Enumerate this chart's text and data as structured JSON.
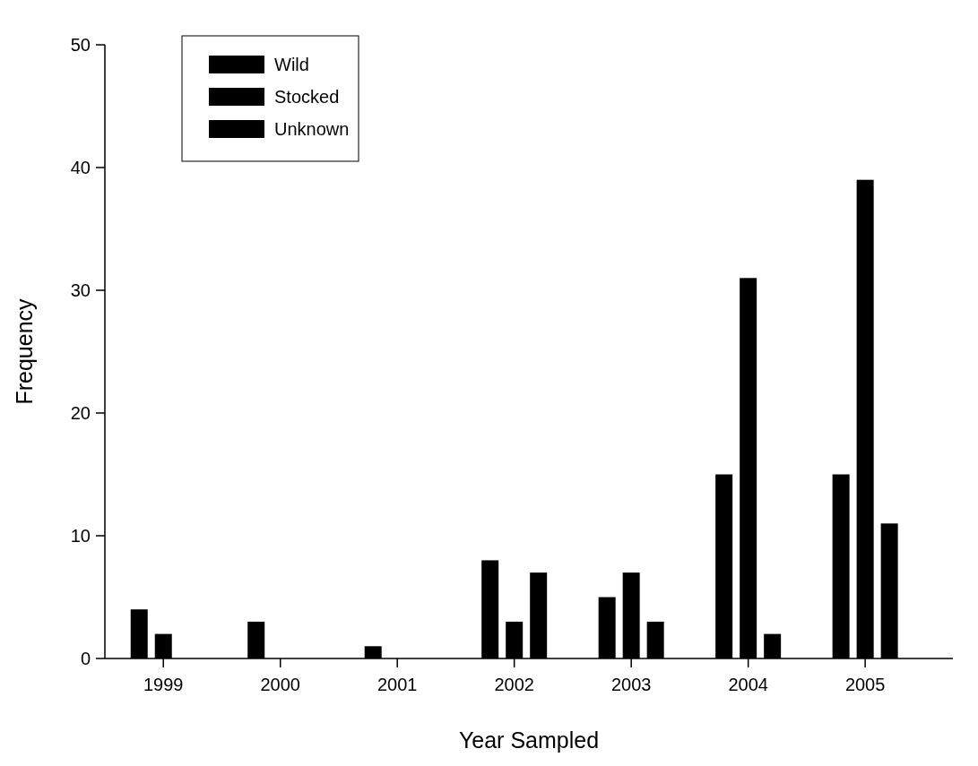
{
  "chart_data": {
    "type": "bar",
    "xlabel": "Year Sampled",
    "ylabel": "Frequency",
    "categories": [
      "1999",
      "2000",
      "2001",
      "2002",
      "2003",
      "2004",
      "2005"
    ],
    "series": [
      {
        "name": "Wild",
        "color": "#000000",
        "values": [
          4,
          3,
          1,
          8,
          5,
          15,
          15
        ]
      },
      {
        "name": "Stocked",
        "color": "#000000",
        "values": [
          2,
          0,
          0,
          3,
          7,
          31,
          39
        ]
      },
      {
        "name": "Unknown",
        "color": "#000000",
        "values": [
          0,
          0,
          0,
          7,
          3,
          2,
          11
        ]
      }
    ],
    "ylim": [
      0,
      50
    ],
    "yticks": [
      0,
      10,
      20,
      30,
      40,
      50
    ],
    "grid": false,
    "legend": "top left"
  }
}
